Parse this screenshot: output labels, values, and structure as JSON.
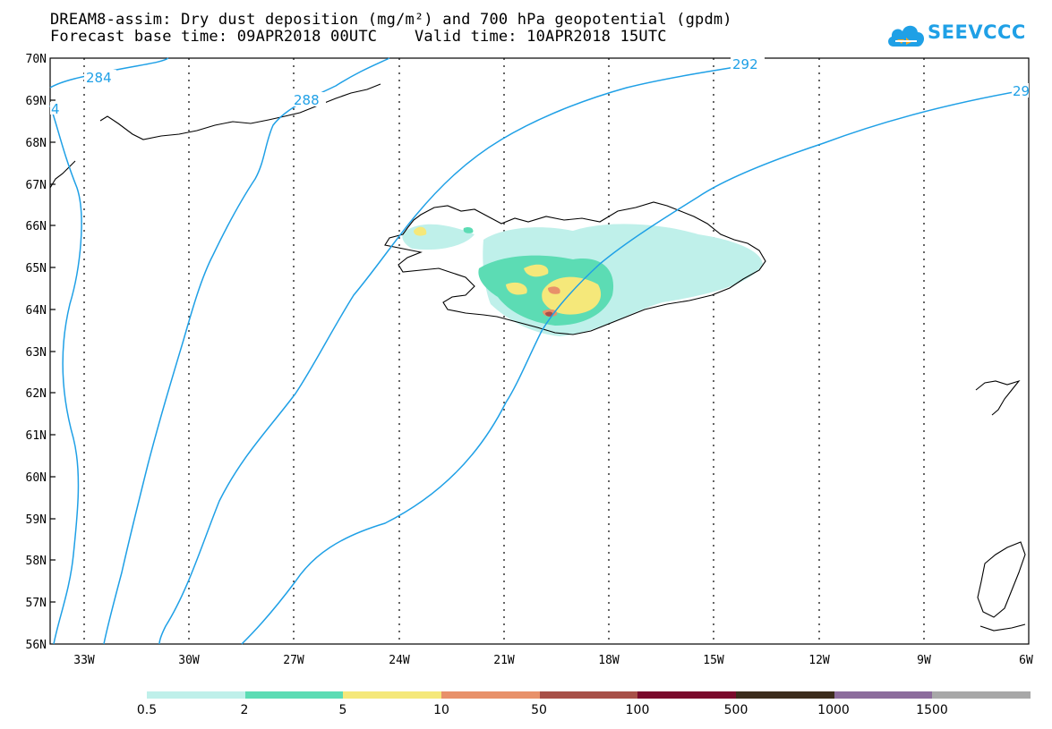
{
  "title_line1": "DREAM8-assim: Dry dust deposition (mg/m²) and 700 hPa geopotential (gpdm)",
  "title_line2": "Forecast base time: 09APR2018 00UTC    Valid time: 10APR2018 15UTC",
  "logo_text": "SEEVCCC",
  "logo_icon": "cloud-icon",
  "lat_labels": [
    "70N",
    "69N",
    "68N",
    "67N",
    "66N",
    "65N",
    "64N",
    "63N",
    "62N",
    "61N",
    "60N",
    "59N",
    "58N",
    "57N",
    "56N"
  ],
  "lon_labels": [
    "33W",
    "30W",
    "27W",
    "24W",
    "21W",
    "18W",
    "15W",
    "12W",
    "9W",
    "6W"
  ],
  "contour_labels": [
    "284",
    "288",
    "292",
    "29",
    "4"
  ],
  "colorbar": {
    "colors": [
      "#bff0ea",
      "#5cdcb4",
      "#f5e87a",
      "#e8916a",
      "#a85048",
      "#7a0a2c",
      "#3c2c1c",
      "#8c6c9c",
      "#a8a8a8"
    ],
    "labels": [
      "0.5",
      "2",
      "5",
      "10",
      "50",
      "100",
      "500",
      "1000",
      "1500"
    ]
  },
  "colors": {
    "contour": "#1fa0e6",
    "coast": "#000000"
  }
}
